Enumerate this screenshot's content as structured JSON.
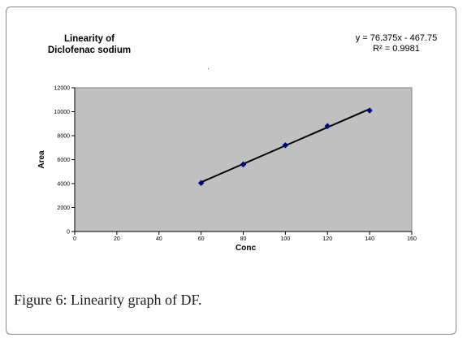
{
  "figure": {
    "caption": "Figure 6: Linearity graph of DF."
  },
  "colors": {
    "plot_background": "#c0c0c0",
    "trendline": "#000000",
    "marker": "#00007f",
    "frame_border": "#8a8a8a"
  },
  "chart_data": {
    "type": "scatter",
    "title_lines": [
      "Linearity of",
      "Diclofenac sodium"
    ],
    "xlabel": "Conc",
    "ylabel": "Area",
    "xlim": [
      0,
      160
    ],
    "ylim": [
      0,
      12000
    ],
    "x_ticks": [
      0,
      20,
      40,
      60,
      80,
      100,
      120,
      140,
      160
    ],
    "y_ticks": [
      0,
      2000,
      4000,
      6000,
      8000,
      10000,
      12000
    ],
    "grid": false,
    "series": [
      {
        "x": [
          60,
          80,
          100,
          120,
          140
        ],
        "y": [
          4050,
          5600,
          7200,
          8800,
          10100
        ],
        "marker": "diamond"
      }
    ],
    "trendline": {
      "slope": 76.375,
      "intercept": -467.75,
      "x_range": [
        60,
        140
      ],
      "equation_text": "y = 76.375x - 467.75",
      "r2_text": "R² = 0.9981"
    }
  }
}
